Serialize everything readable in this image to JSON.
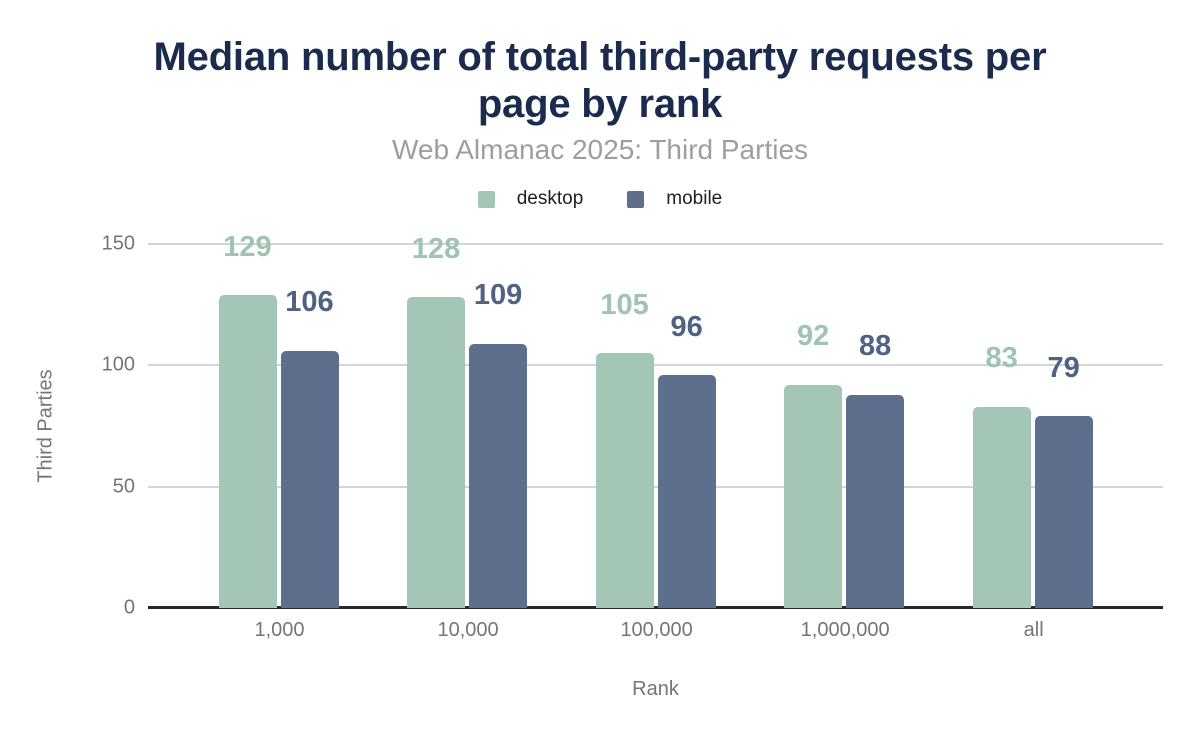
{
  "chart_data": {
    "type": "bar",
    "title": "Median number of total third-party requests per page by rank",
    "subtitle": "Web Almanac 2025: Third Parties",
    "categories": [
      "1,000",
      "10,000",
      "100,000",
      "1,000,000",
      "all"
    ],
    "series": [
      {
        "name": "desktop",
        "values": [
          129,
          128,
          105,
          92,
          83
        ],
        "bar_color": "#a4c6b6",
        "label_color": "#a0c4b2"
      },
      {
        "name": "mobile",
        "values": [
          106,
          109,
          96,
          88,
          79
        ],
        "bar_color": "#5d6f8c",
        "label_color": "#4f6284"
      }
    ],
    "xlabel": "Rank",
    "ylabel": "Third Parties",
    "ylim": [
      0,
      150
    ],
    "y_ticks": [
      "150",
      "100",
      "50",
      "0"
    ],
    "grid": true,
    "legend_position": "top",
    "value_labels_shown": true,
    "colors": {
      "title": "#1b2b4d",
      "subtitle": "#9e9e9e",
      "axis_text": "#757575",
      "gridline": "#d4d4d4",
      "axis_line": "#26282a",
      "background": "#ffffff"
    }
  }
}
